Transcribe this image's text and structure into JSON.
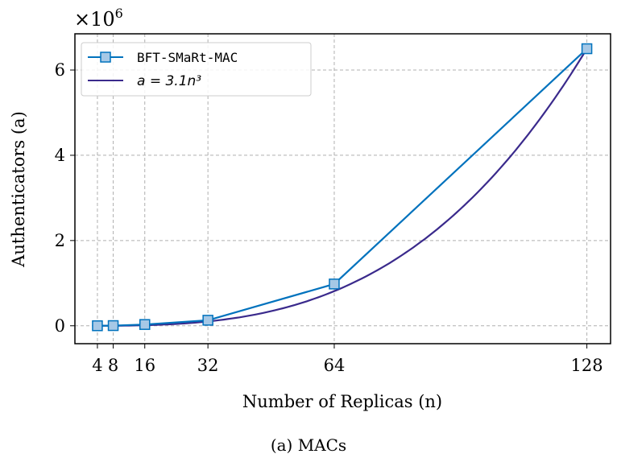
{
  "chart_data": {
    "type": "line",
    "title": "",
    "caption": "(a) MACs",
    "xlabel": "Number of Replicas (n)",
    "ylabel": "Authenticators (a)",
    "y_multiplier": "×10^6",
    "y_multiplier_base": "×10",
    "y_multiplier_exp": "6",
    "xlim": [
      -1.7,
      134
    ],
    "ylim": [
      -0.42,
      6.85
    ],
    "xticks": [
      4,
      8,
      16,
      32,
      64,
      128
    ],
    "xtick_labels": [
      "4",
      "8",
      "16",
      "32",
      "64",
      "128"
    ],
    "yticks": [
      0,
      2,
      4,
      6
    ],
    "ytick_labels": [
      "0",
      "2",
      "4",
      "6"
    ],
    "grid": true,
    "legend_placement": "top-left",
    "series": [
      {
        "name": "BFT-SMaRt-MAC",
        "color": "#0072bd",
        "marker": "square",
        "x": [
          4,
          8,
          16,
          32,
          64,
          128
        ],
        "y": [
          0.0005,
          0.004,
          0.03,
          0.13,
          0.98,
          6.5
        ]
      },
      {
        "name": "a = 3.1n³",
        "color": "#3a2a8c",
        "marker": "none",
        "formula_coefficient": 3.1,
        "formula_exponent": 3
      }
    ]
  }
}
